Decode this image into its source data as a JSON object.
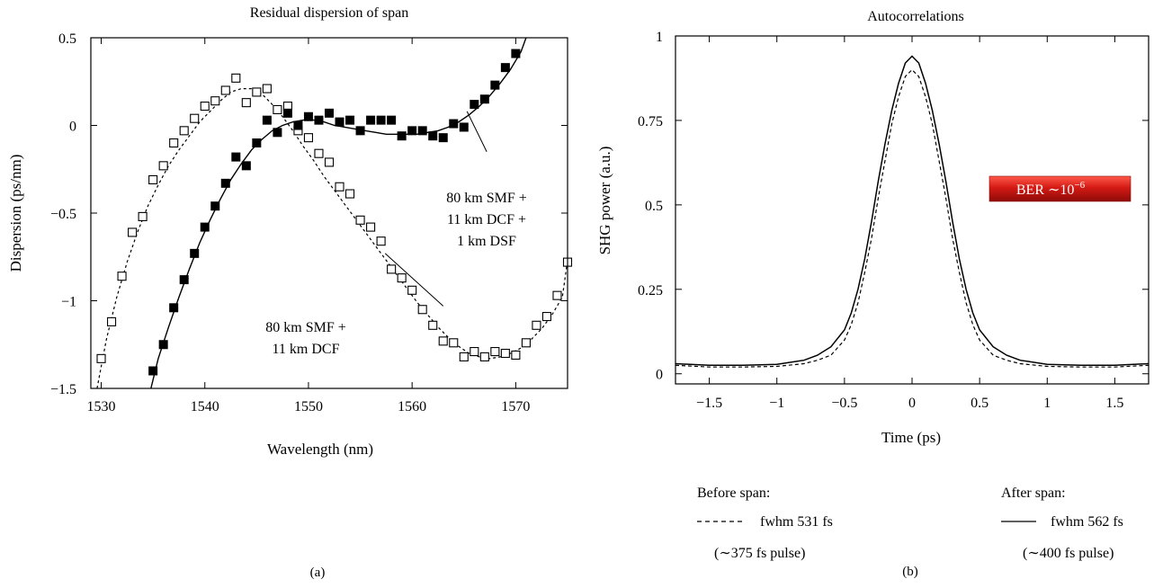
{
  "chart_data": [
    {
      "type": "scatter",
      "panel_label": "(a)",
      "title": "Residual dispersion of span",
      "xlabel": "Wavelength (nm)",
      "ylabel": "Dispersion (ps/nm)",
      "xlim": [
        1529,
        1575
      ],
      "ylim": [
        -1.5,
        0.5
      ],
      "xticks": [
        1530,
        1540,
        1550,
        1560,
        1570
      ],
      "yticks": [
        -1.5,
        -1,
        -0.5,
        0,
        0.5
      ],
      "xtick_labels": [
        "1530",
        "1540",
        "1550",
        "1560",
        "1570"
      ],
      "ytick_labels": [
        "−1.5",
        "−1",
        "−0.5",
        "0",
        "0.5"
      ],
      "grid": false,
      "series": [
        {
          "marker": "open-square",
          "fit_style": "dotted",
          "annotation": [
            "80 km SMF +",
            "11 km DCF"
          ],
          "x": [
            1530,
            1531,
            1532,
            1533,
            1534,
            1535,
            1536,
            1537,
            1538,
            1539,
            1540,
            1541,
            1542,
            1543,
            1544,
            1545,
            1546,
            1547,
            1548,
            1549,
            1550,
            1551,
            1552,
            1553,
            1554,
            1555,
            1556,
            1557,
            1558,
            1559,
            1560,
            1561,
            1562,
            1563,
            1564,
            1565,
            1566,
            1567,
            1568,
            1569,
            1570,
            1571,
            1572,
            1573,
            1574,
            1575
          ],
          "values": [
            -1.33,
            -1.12,
            -0.86,
            -0.61,
            -0.52,
            -0.31,
            -0.23,
            -0.1,
            -0.03,
            0.04,
            0.11,
            0.14,
            0.2,
            0.27,
            0.13,
            0.19,
            0.21,
            0.09,
            0.11,
            -0.03,
            -0.07,
            -0.16,
            -0.21,
            -0.35,
            -0.39,
            -0.54,
            -0.58,
            -0.66,
            -0.82,
            -0.87,
            -0.94,
            -1.05,
            -1.14,
            -1.23,
            -1.24,
            -1.32,
            -1.29,
            -1.32,
            -1.29,
            -1.3,
            -1.31,
            -1.24,
            -1.14,
            -1.09,
            -0.97,
            -0.78
          ],
          "fit_x": [
            1529.6,
            1530.5,
            1531.5,
            1532.5,
            1533.5,
            1534.5,
            1535.5,
            1536.5,
            1537.5,
            1538.5,
            1539.5,
            1540.5,
            1541.5,
            1542.5,
            1543.5,
            1544.5,
            1545.5,
            1546.5,
            1547.5,
            1548.5,
            1549.5,
            1550.5,
            1551.5,
            1552.5,
            1553.5,
            1554.5,
            1555.5,
            1556.5,
            1557.5,
            1558.5,
            1559.5,
            1560.5,
            1561.5,
            1562.5,
            1563.5,
            1564.5,
            1565.5,
            1566.5,
            1567.5,
            1568.5,
            1569.5,
            1570.5,
            1571.5,
            1572.5,
            1573.5,
            1574.5,
            1575
          ],
          "fit_y": [
            -1.5,
            -1.22,
            -0.98,
            -0.78,
            -0.61,
            -0.46,
            -0.34,
            -0.23,
            -0.14,
            -0.06,
            0.02,
            0.08,
            0.14,
            0.19,
            0.21,
            0.21,
            0.18,
            0.12,
            0.05,
            -0.03,
            -0.12,
            -0.2,
            -0.29,
            -0.37,
            -0.45,
            -0.53,
            -0.61,
            -0.69,
            -0.77,
            -0.85,
            -0.93,
            -1.01,
            -1.08,
            -1.15,
            -1.21,
            -1.26,
            -1.3,
            -1.32,
            -1.33,
            -1.32,
            -1.3,
            -1.27,
            -1.22,
            -1.16,
            -1.08,
            -0.98,
            -0.77
          ]
        },
        {
          "marker": "filled-square",
          "fit_style": "solid",
          "annotation": [
            "80 km SMF +",
            "11 km DCF +",
            "1 km DSF"
          ],
          "x": [
            1535,
            1536,
            1537,
            1538,
            1539,
            1540,
            1541,
            1542,
            1543,
            1544,
            1545,
            1546,
            1547,
            1548,
            1549,
            1550,
            1551,
            1552,
            1553,
            1554,
            1555,
            1556,
            1557,
            1558,
            1559,
            1560,
            1561,
            1562,
            1563,
            1564,
            1565,
            1566,
            1567,
            1568,
            1569,
            1570
          ],
          "values": [
            -1.4,
            -1.25,
            -1.04,
            -0.88,
            -0.73,
            -0.58,
            -0.46,
            -0.33,
            -0.18,
            -0.23,
            -0.1,
            0.03,
            -0.04,
            0.07,
            0.0,
            0.05,
            0.03,
            0.07,
            0.02,
            0.03,
            -0.03,
            0.03,
            0.03,
            0.03,
            -0.06,
            -0.03,
            -0.03,
            -0.06,
            -0.07,
            0.01,
            -0.01,
            0.12,
            0.15,
            0.23,
            0.33,
            0.41
          ],
          "fit_x": [
            1534.8,
            1535.5,
            1536.5,
            1537.5,
            1538.5,
            1539.5,
            1540.5,
            1541.5,
            1542.5,
            1543.5,
            1544.5,
            1545.5,
            1546.5,
            1547.5,
            1548.5,
            1549.5,
            1550.5,
            1551.5,
            1552.5,
            1553.5,
            1554.5,
            1555.5,
            1556.5,
            1557.5,
            1558.5,
            1559.5,
            1560.5,
            1561.5,
            1562.5,
            1563.5,
            1564.5,
            1565.5,
            1566.5,
            1567.5,
            1568.5,
            1569.5,
            1570.5,
            1571
          ],
          "fit_y": [
            -1.5,
            -1.33,
            -1.15,
            -0.98,
            -0.82,
            -0.67,
            -0.54,
            -0.42,
            -0.31,
            -0.22,
            -0.14,
            -0.08,
            -0.03,
            0.0,
            0.02,
            0.03,
            0.03,
            0.02,
            0.0,
            -0.01,
            -0.02,
            -0.03,
            -0.04,
            -0.05,
            -0.05,
            -0.05,
            -0.05,
            -0.04,
            -0.03,
            -0.01,
            0.02,
            0.06,
            0.11,
            0.17,
            0.24,
            0.32,
            0.42,
            0.5
          ]
        }
      ]
    },
    {
      "type": "line",
      "panel_label": "(b)",
      "title": "Autocorrelations",
      "xlabel": "Time (ps)",
      "ylabel": "SHG power (a.u.)",
      "xlim": [
        -1.75,
        1.75
      ],
      "ylim": [
        -0.03,
        1.0
      ],
      "xticks": [
        -1.5,
        -1,
        -0.5,
        0,
        0.5,
        1,
        1.5
      ],
      "yticks": [
        0,
        0.25,
        0.5,
        0.75,
        1
      ],
      "xtick_labels": [
        "−1.5",
        "−1",
        "−0.5",
        "0",
        "0.5",
        "1",
        "1.5"
      ],
      "ytick_labels": [
        "0",
        "0.25",
        "0.5",
        "0.75",
        "1"
      ],
      "grid": false,
      "series": [
        {
          "style": "dashed",
          "legend_header": "Before span:",
          "legend_lines": [
            "fwhm 531 fs",
            "(∼375 fs pulse)"
          ],
          "x": [
            -1.75,
            -1.5,
            -1.25,
            -1.0,
            -0.8,
            -0.7,
            -0.6,
            -0.5,
            -0.45,
            -0.4,
            -0.35,
            -0.3,
            -0.25,
            -0.2,
            -0.15,
            -0.1,
            -0.05,
            0,
            0.05,
            0.1,
            0.15,
            0.2,
            0.25,
            0.3,
            0.35,
            0.4,
            0.45,
            0.5,
            0.6,
            0.7,
            0.8,
            1.0,
            1.25,
            1.5,
            1.75
          ],
          "values": [
            0.025,
            0.02,
            0.02,
            0.022,
            0.03,
            0.04,
            0.055,
            0.1,
            0.145,
            0.21,
            0.3,
            0.4,
            0.52,
            0.63,
            0.74,
            0.82,
            0.88,
            0.9,
            0.88,
            0.82,
            0.74,
            0.63,
            0.52,
            0.4,
            0.3,
            0.21,
            0.145,
            0.1,
            0.055,
            0.04,
            0.03,
            0.022,
            0.02,
            0.02,
            0.025
          ]
        },
        {
          "style": "solid",
          "legend_header": "After span:",
          "legend_lines": [
            "fwhm 562 fs",
            "(∼400 fs pulse)"
          ],
          "x": [
            -1.75,
            -1.5,
            -1.25,
            -1.0,
            -0.8,
            -0.7,
            -0.6,
            -0.5,
            -0.45,
            -0.4,
            -0.35,
            -0.3,
            -0.25,
            -0.2,
            -0.15,
            -0.1,
            -0.05,
            0,
            0.05,
            0.1,
            0.15,
            0.2,
            0.25,
            0.3,
            0.35,
            0.4,
            0.45,
            0.5,
            0.6,
            0.7,
            0.8,
            1.0,
            1.25,
            1.5,
            1.75
          ],
          "values": [
            0.03,
            0.025,
            0.025,
            0.028,
            0.04,
            0.055,
            0.08,
            0.13,
            0.18,
            0.25,
            0.34,
            0.45,
            0.57,
            0.68,
            0.78,
            0.86,
            0.92,
            0.94,
            0.92,
            0.86,
            0.78,
            0.68,
            0.57,
            0.45,
            0.34,
            0.25,
            0.18,
            0.13,
            0.08,
            0.055,
            0.04,
            0.028,
            0.025,
            0.025,
            0.03
          ]
        }
      ],
      "badge": {
        "text": "BER ∼10",
        "superscript": "−6",
        "color": "#cc1111"
      }
    }
  ]
}
